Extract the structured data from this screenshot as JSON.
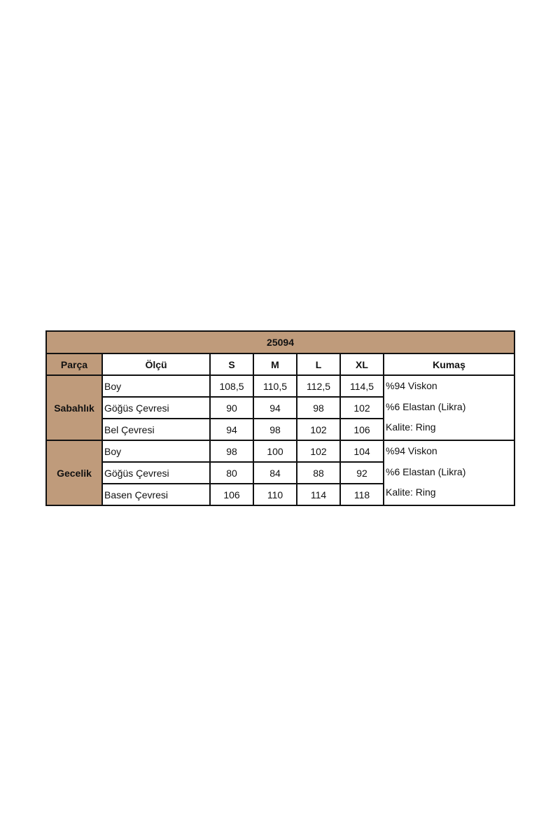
{
  "title": "25094",
  "headers": [
    "Parça",
    "Ölçü",
    "S",
    "M",
    "L",
    "XL",
    "Kumaş"
  ],
  "colors": {
    "header_bg": "#bf9b7b",
    "border": "#111111"
  },
  "groups": [
    {
      "name": "Sabahlık",
      "rows": [
        {
          "measure": "Boy",
          "values": [
            "108,5",
            "110,5",
            "112,5",
            "114,5"
          ]
        },
        {
          "measure": "Göğüs Çevresi",
          "values": [
            "90",
            "94",
            "98",
            "102"
          ]
        },
        {
          "measure": "Bel Çevresi",
          "values": [
            "94",
            "98",
            "102",
            "106"
          ]
        }
      ],
      "fabric": [
        "%94 Viskon",
        "%6 Elastan (Likra)",
        "Kalite: Ring"
      ]
    },
    {
      "name": "Gecelik",
      "rows": [
        {
          "measure": "Boy",
          "values": [
            "98",
            "100",
            "102",
            "104"
          ]
        },
        {
          "measure": "Göğüs Çevresi",
          "values": [
            "80",
            "84",
            "88",
            "92"
          ]
        },
        {
          "measure": "Basen Çevresi",
          "values": [
            "106",
            "110",
            "114",
            "118"
          ]
        }
      ],
      "fabric": [
        "%94 Viskon",
        "%6 Elastan (Likra)",
        "Kalite: Ring"
      ]
    }
  ]
}
